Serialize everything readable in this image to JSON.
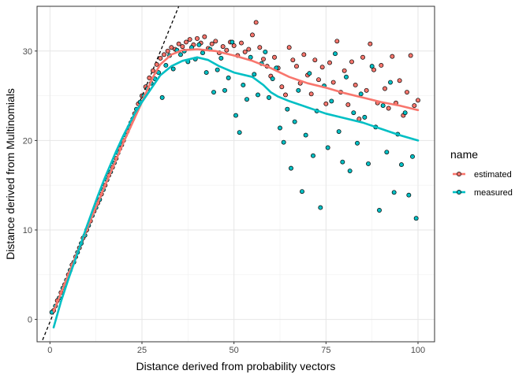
{
  "chart_data": {
    "type": "scatter",
    "xlabel": "Distance derived from probability vectors",
    "ylabel": "Distance derived from Multinomials",
    "xlim": [
      -3.5,
      104.5
    ],
    "ylim": [
      -2.5,
      35
    ],
    "x_ticks": [
      0,
      25,
      50,
      75,
      100
    ],
    "y_ticks": [
      0,
      10,
      20,
      30
    ],
    "grid": true,
    "legend": {
      "title": "name",
      "position": "right",
      "entries": [
        {
          "name": "estimated",
          "color": "#F8766D"
        },
        {
          "name": "measured",
          "color": "#00BFC4"
        }
      ]
    },
    "reference_line": {
      "style": "dashed",
      "color": "#000000",
      "points": [
        [
          -2,
          -2.3
        ],
        [
          35,
          35
        ]
      ]
    },
    "series": [
      {
        "name": "estimated",
        "color": "#F8766D",
        "points": [
          [
            1,
            1.0
          ],
          [
            2,
            2.1
          ],
          [
            3,
            3.0
          ],
          [
            4,
            3.9
          ],
          [
            5,
            5.0
          ],
          [
            6,
            6.1
          ],
          [
            7,
            7.0
          ],
          [
            8,
            8.0
          ],
          [
            9,
            9.1
          ],
          [
            10,
            10.0
          ],
          [
            11,
            11.0
          ],
          [
            12,
            12.1
          ],
          [
            13,
            13.0
          ],
          [
            14,
            14.0
          ],
          [
            15,
            15.0
          ],
          [
            16,
            16.1
          ],
          [
            17,
            17.0
          ],
          [
            18,
            18.0
          ],
          [
            19,
            19.1
          ],
          [
            20,
            20.0
          ],
          [
            21,
            21.0
          ],
          [
            22,
            22.0
          ],
          [
            23,
            23.0
          ],
          [
            24,
            24.1
          ],
          [
            25,
            25.0
          ],
          [
            26,
            26.0
          ],
          [
            27,
            27.0
          ],
          [
            28,
            27.8
          ],
          [
            29,
            28.5
          ],
          [
            30,
            29.2
          ],
          [
            31,
            29.6
          ],
          [
            32,
            30.0
          ],
          [
            33,
            30.4
          ],
          [
            34,
            30.2
          ],
          [
            35,
            30.8
          ],
          [
            36,
            30.5
          ],
          [
            37,
            31.0
          ],
          [
            38,
            31.3
          ],
          [
            39,
            30.7
          ],
          [
            40,
            31.4
          ],
          [
            41,
            30.9
          ],
          [
            42,
            31.6
          ],
          [
            43,
            30.3
          ],
          [
            44,
            30.8
          ],
          [
            45,
            31.1
          ],
          [
            46,
            29.8
          ],
          [
            47,
            30.5
          ],
          [
            48,
            30.1
          ],
          [
            49,
            31.0
          ],
          [
            50,
            30.6
          ],
          [
            51,
            29.5
          ],
          [
            52,
            30.9
          ],
          [
            53,
            29.9
          ],
          [
            54,
            30.2
          ],
          [
            55,
            31.8
          ],
          [
            56,
            33.2
          ],
          [
            57,
            30.4
          ],
          [
            58,
            29.1
          ],
          [
            59,
            28.3
          ],
          [
            60,
            27.2
          ],
          [
            61,
            29.3
          ],
          [
            62,
            28.1
          ],
          [
            63,
            26.0
          ],
          [
            64,
            25.1
          ],
          [
            65,
            30.4
          ],
          [
            66,
            29.0
          ],
          [
            67,
            28.3
          ],
          [
            68,
            26.4
          ],
          [
            69,
            29.6
          ],
          [
            70,
            27.3
          ],
          [
            71,
            25.2
          ],
          [
            72,
            29.0
          ],
          [
            73,
            26.8
          ],
          [
            74,
            28.2
          ],
          [
            75,
            24.1
          ],
          [
            76,
            28.7
          ],
          [
            77,
            26.5
          ],
          [
            78,
            31.1
          ],
          [
            79,
            25.4
          ],
          [
            80,
            27.8
          ],
          [
            81,
            24.0
          ],
          [
            82,
            28.8
          ],
          [
            83,
            26.2
          ],
          [
            84,
            22.4
          ],
          [
            85,
            29.3
          ],
          [
            86,
            25.6
          ],
          [
            87,
            30.8
          ],
          [
            88,
            27.9
          ],
          [
            89,
            24.2
          ],
          [
            90,
            28.4
          ],
          [
            91,
            25.8
          ],
          [
            92,
            23.6
          ],
          [
            93,
            29.4
          ],
          [
            94,
            24.2
          ],
          [
            95,
            26.7
          ],
          [
            96,
            22.8
          ],
          [
            97,
            25.4
          ],
          [
            98,
            29.5
          ],
          [
            99,
            23.9
          ],
          [
            100,
            24.5
          ]
        ]
      },
      {
        "name": "measured",
        "color": "#00BFC4",
        "points": [
          [
            0.5,
            0.8
          ],
          [
            1.5,
            1.5
          ],
          [
            2.5,
            2.4
          ],
          [
            3.5,
            3.5
          ],
          [
            4.5,
            4.4
          ],
          [
            5.5,
            5.5
          ],
          [
            6.5,
            6.4
          ],
          [
            7.5,
            7.5
          ],
          [
            8.5,
            8.5
          ],
          [
            9.5,
            9.4
          ],
          [
            10.5,
            10.5
          ],
          [
            11.5,
            11.6
          ],
          [
            12.5,
            12.5
          ],
          [
            13.5,
            13.4
          ],
          [
            14.5,
            14.5
          ],
          [
            15.5,
            15.6
          ],
          [
            16.5,
            16.5
          ],
          [
            17.5,
            17.5
          ],
          [
            18.5,
            18.6
          ],
          [
            19.5,
            19.5
          ],
          [
            20.5,
            20.6
          ],
          [
            21.5,
            21.5
          ],
          [
            22.5,
            22.4
          ],
          [
            23.5,
            23.5
          ],
          [
            24.5,
            24.3
          ],
          [
            25.5,
            25.0
          ],
          [
            26.5,
            25.8
          ],
          [
            27.5,
            26.4
          ],
          [
            28.5,
            26.9
          ],
          [
            29.5,
            27.6
          ],
          [
            30.5,
            24.8
          ],
          [
            31.5,
            28.4
          ],
          [
            32.5,
            29.5
          ],
          [
            33.5,
            28.0
          ],
          [
            34.5,
            30.1
          ],
          [
            35.5,
            29.6
          ],
          [
            36.5,
            30.0
          ],
          [
            37.5,
            28.8
          ],
          [
            38.5,
            30.4
          ],
          [
            39.5,
            29.1
          ],
          [
            40.5,
            30.7
          ],
          [
            41.5,
            29.8
          ],
          [
            42.5,
            27.6
          ],
          [
            43.5,
            30.2
          ],
          [
            44.5,
            25.4
          ],
          [
            45.5,
            27.9
          ],
          [
            46.5,
            29.2
          ],
          [
            47.5,
            25.6
          ],
          [
            48.5,
            27.0
          ],
          [
            49.5,
            31.0
          ],
          [
            50.5,
            22.8
          ],
          [
            51.5,
            20.9
          ],
          [
            52.5,
            26.2
          ],
          [
            53.5,
            24.6
          ],
          [
            54.5,
            29.3
          ],
          [
            55.5,
            27.4
          ],
          [
            56.5,
            25.1
          ],
          [
            57.5,
            28.6
          ],
          [
            58.5,
            29.9
          ],
          [
            59.5,
            24.8
          ],
          [
            60.5,
            26.9
          ],
          [
            61.5,
            28.1
          ],
          [
            62.5,
            21.4
          ],
          [
            63.5,
            19.8
          ],
          [
            64.5,
            23.5
          ],
          [
            65.5,
            16.9
          ],
          [
            66.5,
            22.1
          ],
          [
            67.5,
            25.6
          ],
          [
            68.5,
            14.3
          ],
          [
            69.5,
            20.6
          ],
          [
            70.5,
            27.5
          ],
          [
            71.5,
            18.3
          ],
          [
            72.5,
            23.3
          ],
          [
            73.5,
            12.5
          ],
          [
            74.5,
            26.1
          ],
          [
            75.5,
            19.2
          ],
          [
            76.5,
            24.4
          ],
          [
            77.5,
            29.7
          ],
          [
            78.5,
            21.0
          ],
          [
            79.5,
            17.6
          ],
          [
            80.5,
            27.1
          ],
          [
            81.5,
            16.6
          ],
          [
            82.5,
            23.1
          ],
          [
            83.5,
            19.7
          ],
          [
            84.5,
            25.2
          ],
          [
            85.5,
            22.6
          ],
          [
            86.5,
            17.4
          ],
          [
            87.5,
            28.3
          ],
          [
            88.5,
            21.5
          ],
          [
            89.5,
            12.2
          ],
          [
            90.5,
            23.9
          ],
          [
            91.5,
            18.7
          ],
          [
            92.5,
            26.5
          ],
          [
            93.5,
            14.2
          ],
          [
            94.5,
            20.7
          ],
          [
            95.5,
            17.3
          ],
          [
            96.5,
            23.1
          ],
          [
            97.5,
            13.9
          ],
          [
            98.5,
            18.2
          ],
          [
            99.5,
            11.3
          ]
        ]
      }
    ],
    "smooth_lines": [
      {
        "name": "estimated",
        "color": "#F8766D",
        "points": [
          [
            1,
            0.9
          ],
          [
            5,
            5.0
          ],
          [
            10,
            10.1
          ],
          [
            15,
            15.0
          ],
          [
            20,
            19.8
          ],
          [
            25,
            24.3
          ],
          [
            28,
            27.1
          ],
          [
            30,
            28.5
          ],
          [
            33,
            29.6
          ],
          [
            36,
            30.1
          ],
          [
            40,
            30.2
          ],
          [
            45,
            30.0
          ],
          [
            50,
            29.5
          ],
          [
            55,
            28.9
          ],
          [
            60,
            28.1
          ],
          [
            65,
            27.1
          ],
          [
            70,
            26.4
          ],
          [
            75,
            25.9
          ],
          [
            80,
            25.3
          ],
          [
            85,
            24.8
          ],
          [
            90,
            24.3
          ],
          [
            95,
            23.9
          ],
          [
            100,
            23.4
          ]
        ]
      },
      {
        "name": "measured",
        "color": "#00BFC4",
        "points": [
          [
            1,
            -0.9
          ],
          [
            3,
            2.0
          ],
          [
            5,
            4.5
          ],
          [
            8,
            8.0
          ],
          [
            10,
            10.4
          ],
          [
            13,
            13.8
          ],
          [
            15,
            15.9
          ],
          [
            18,
            18.8
          ],
          [
            20,
            20.6
          ],
          [
            23,
            23.0
          ],
          [
            25,
            24.3
          ],
          [
            28,
            26.1
          ],
          [
            30,
            27.3
          ],
          [
            33,
            28.3
          ],
          [
            36,
            28.9
          ],
          [
            40,
            29.3
          ],
          [
            43,
            29.0
          ],
          [
            46,
            28.3
          ],
          [
            50,
            27.6
          ],
          [
            55,
            27.1
          ],
          [
            58,
            26.2
          ],
          [
            60,
            25.4
          ],
          [
            62,
            24.9
          ],
          [
            65,
            24.4
          ],
          [
            70,
            23.7
          ],
          [
            75,
            23.0
          ],
          [
            80,
            22.5
          ],
          [
            85,
            22.0
          ],
          [
            90,
            21.3
          ],
          [
            95,
            20.6
          ],
          [
            100,
            20.0
          ]
        ]
      }
    ]
  }
}
